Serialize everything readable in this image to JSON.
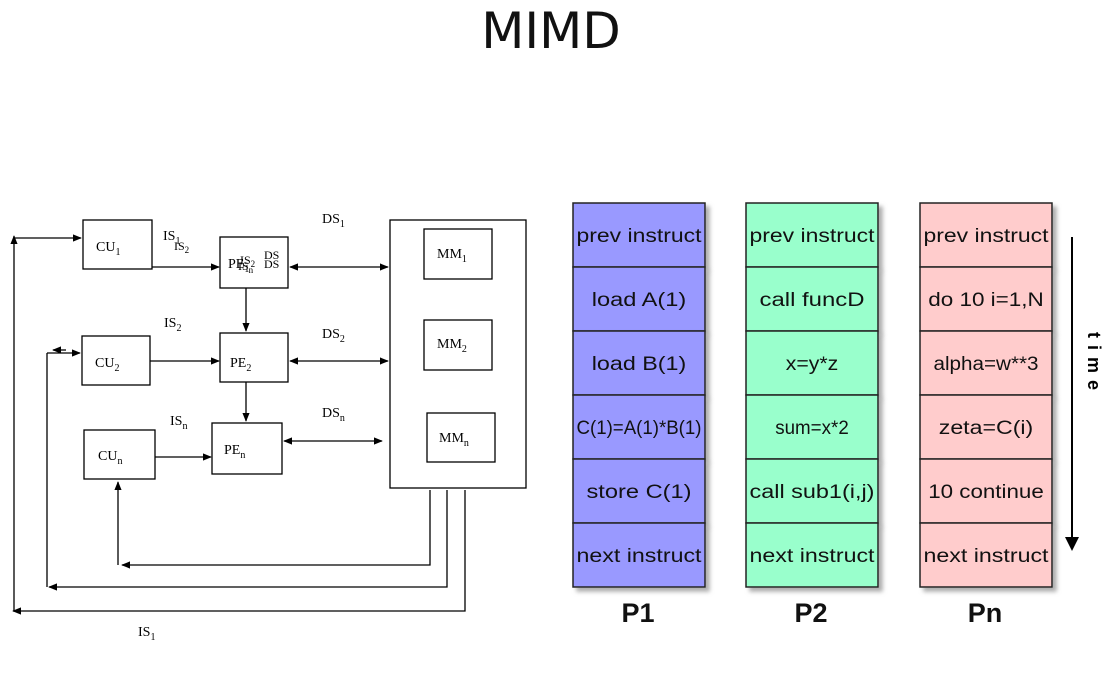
{
  "slide": {
    "title": "MIMD"
  },
  "diagram": {
    "cu": [
      {
        "base": "CU",
        "sub": "1"
      },
      {
        "base": "CU",
        "sub": "2"
      },
      {
        "base": "CU",
        "sub": "n"
      }
    ],
    "pe": [
      {
        "base": "PE",
        "sub": "1"
      },
      {
        "base": "PE",
        "sub": "2"
      },
      {
        "base": "PE",
        "sub": "n"
      }
    ],
    "mm": [
      {
        "base": "MM",
        "sub": "1"
      },
      {
        "base": "MM",
        "sub": "2"
      },
      {
        "base": "MM",
        "sub": "n"
      }
    ],
    "is": [
      {
        "base": "IS",
        "sub": "1"
      },
      {
        "base": "IS",
        "sub": "2"
      },
      {
        "base": "IS",
        "sub": "n"
      }
    ],
    "ds": [
      {
        "base": "DS",
        "sub": "1"
      },
      {
        "base": "DS",
        "sub": "2"
      },
      {
        "base": "DS",
        "sub": "n"
      }
    ],
    "overlap_labels": [
      {
        "base": "IS",
        "sub": "2"
      },
      {
        "base": "IS",
        "sub": "n"
      },
      {
        "base": "DS",
        "sub": ""
      }
    ],
    "bottom_is": {
      "base": "IS",
      "sub": "1"
    }
  },
  "processors": {
    "time_label": "time",
    "colors": {
      "p1": "#9999ff",
      "p2": "#99ffcc",
      "pn": "#ffcccc"
    },
    "columns": [
      {
        "name": "P1",
        "instructions": [
          "prev instruct",
          "load A(1)",
          "load B(1)",
          "C(1)=A(1)*B(1)",
          "store C(1)",
          "next instruct"
        ]
      },
      {
        "name": "P2",
        "instructions": [
          "prev instruct",
          "call funcD",
          "x=y*z",
          "sum=x*2",
          "call sub1(i,j)",
          "next instruct"
        ]
      },
      {
        "name": "Pn",
        "instructions": [
          "prev instruct",
          "do 10 i=1,N",
          "alpha=w**3",
          "zeta=C(i)",
          "10 continue",
          "next instruct"
        ]
      }
    ]
  }
}
